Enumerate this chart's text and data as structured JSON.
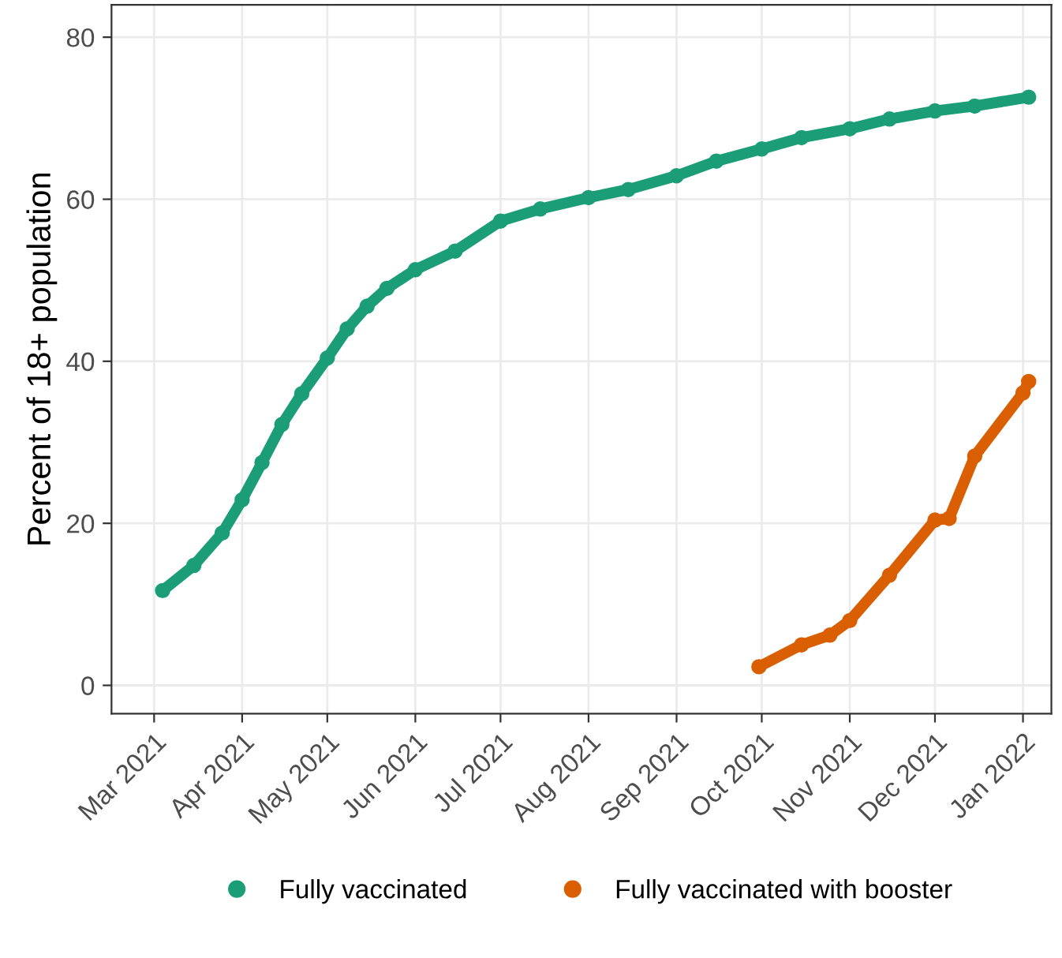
{
  "chart_data": {
    "type": "line",
    "ylabel": "Percent of 18+ population",
    "series": [
      {
        "name": "Fully vaccinated",
        "color": "#1b9e77",
        "x": [
          "2021-03-04",
          "2021-03-15",
          "2021-03-25",
          "2021-04-01",
          "2021-04-08",
          "2021-04-15",
          "2021-04-22",
          "2021-05-01",
          "2021-05-08",
          "2021-05-15",
          "2021-05-22",
          "2021-06-01",
          "2021-06-15",
          "2021-07-01",
          "2021-07-15",
          "2021-08-01",
          "2021-08-15",
          "2021-09-01",
          "2021-09-15",
          "2021-10-01",
          "2021-10-15",
          "2021-11-01",
          "2021-11-15",
          "2021-12-01",
          "2021-12-15",
          "2022-01-03"
        ],
        "values": [
          11.7,
          14.8,
          18.8,
          22.9,
          27.5,
          32.2,
          36.0,
          40.4,
          44.0,
          46.8,
          49.0,
          51.3,
          53.6,
          57.3,
          58.8,
          60.2,
          61.2,
          62.9,
          64.7,
          66.2,
          67.6,
          68.7,
          69.9,
          70.9,
          71.5,
          72.6
        ]
      },
      {
        "name": "Fully vaccinated with booster",
        "color": "#d95f02",
        "x": [
          "2021-09-30",
          "2021-10-15",
          "2021-10-25",
          "2021-11-01",
          "2021-11-15",
          "2021-12-01",
          "2021-12-06",
          "2021-12-15",
          "2022-01-01",
          "2022-01-03"
        ],
        "values": [
          2.3,
          5.0,
          6.2,
          8.0,
          13.6,
          20.4,
          20.6,
          28.3,
          36.1,
          37.5
        ]
      }
    ],
    "xlim": [
      "2021-02-14",
      "2022-01-11"
    ],
    "xticks": [
      {
        "value": "2021-03-01",
        "label": "Mar 2021"
      },
      {
        "value": "2021-04-01",
        "label": "Apr 2021"
      },
      {
        "value": "2021-05-01",
        "label": "May 2021"
      },
      {
        "value": "2021-06-01",
        "label": "Jun 2021"
      },
      {
        "value": "2021-07-01",
        "label": "Jul 2021"
      },
      {
        "value": "2021-08-01",
        "label": "Aug 2021"
      },
      {
        "value": "2021-09-01",
        "label": "Sep 2021"
      },
      {
        "value": "2021-10-01",
        "label": "Oct 2021"
      },
      {
        "value": "2021-11-01",
        "label": "Nov 2021"
      },
      {
        "value": "2021-12-01",
        "label": "Dec 2021"
      },
      {
        "value": "2022-01-01",
        "label": "Jan 2022"
      }
    ],
    "ylim": [
      -3.5,
      84
    ],
    "yticks": [
      0,
      20,
      40,
      60,
      80
    ],
    "grid": true,
    "legend": "bottom",
    "marker": "circle",
    "line_style": "solid"
  }
}
